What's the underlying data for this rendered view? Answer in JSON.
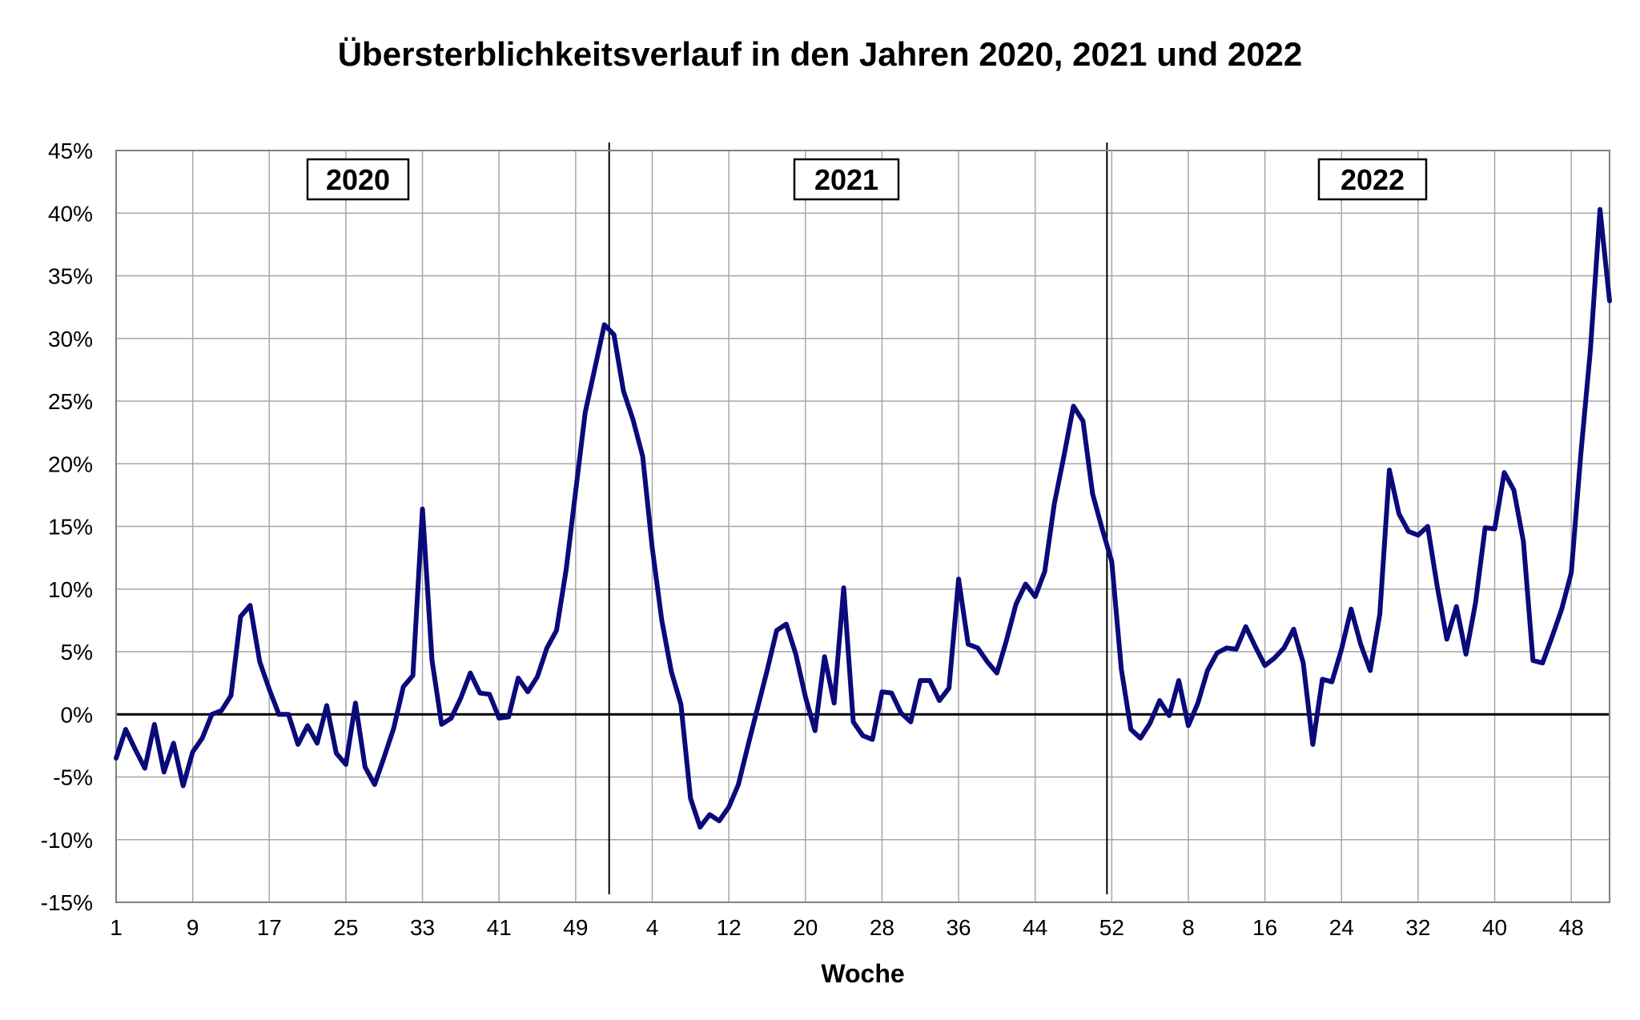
{
  "chart_data": {
    "type": "line",
    "title": "Übersterblichkeitsverlauf in den Jahren 2020, 2021 und 2022",
    "xlabel": "Woche",
    "ylabel": "",
    "ylim": [
      -15,
      45
    ],
    "y_ticks": [
      45,
      40,
      35,
      30,
      25,
      20,
      15,
      10,
      5,
      0,
      -5,
      -10,
      -15
    ],
    "y_tick_labels": [
      "45%",
      "40%",
      "35%",
      "30%",
      "25%",
      "20%",
      "15%",
      "10%",
      "5%",
      "0%",
      "-5%",
      "-10%",
      "-15%"
    ],
    "x_tick_labels": [
      "1",
      "9",
      "17",
      "25",
      "33",
      "41",
      "49",
      "4",
      "12",
      "20",
      "28",
      "36",
      "44",
      "52",
      "8",
      "16",
      "24",
      "32",
      "40",
      "48"
    ],
    "grid": true,
    "years": [
      "2020",
      "2021",
      "2022"
    ],
    "line_color": "#0a0a7a",
    "series": [
      {
        "values": [
          -3.5,
          -1.2,
          -2.8,
          -4.3,
          -0.8,
          -4.6,
          -2.3,
          -5.7,
          -3.0,
          -1.9,
          0.0,
          0.3,
          1.5,
          7.8,
          8.7,
          4.2,
          2.0,
          0.0,
          0.0,
          -2.4,
          -0.9,
          -2.3,
          0.7,
          -3.1,
          -4.0,
          0.9,
          -4.2,
          -5.6,
          -3.4,
          -1.1,
          2.2,
          3.1,
          16.4,
          4.3,
          -0.8,
          -0.3,
          1.3,
          3.3,
          1.7,
          1.6,
          -0.3,
          -0.2,
          2.9,
          1.8,
          3.0,
          5.3,
          6.7,
          11.5,
          17.8,
          24.1,
          27.6,
          31.1,
          30.3,
          25.8,
          23.5,
          20.6,
          13.3,
          7.5,
          3.4,
          0.8,
          -6.7,
          -9.0,
          -8.0,
          -8.5,
          -7.4,
          -5.6,
          -2.5,
          0.5,
          3.5,
          6.7,
          7.2,
          4.8,
          1.4,
          -1.3,
          4.6,
          0.9,
          10.1,
          -0.6,
          -1.7,
          -2.0,
          1.8,
          1.7,
          0.1,
          -0.6,
          2.7,
          2.7,
          1.1,
          2.1,
          10.8,
          5.6,
          5.3,
          4.2,
          3.3,
          5.9,
          8.8,
          10.4,
          9.4,
          11.4,
          16.8,
          20.6,
          24.6,
          23.4,
          17.6,
          14.8,
          12.2,
          3.6,
          -1.2,
          -1.9,
          -0.7,
          1.1,
          -0.1,
          2.7,
          -0.9,
          0.9,
          3.5,
          4.9,
          5.3,
          5.2,
          7.0,
          5.4,
          3.9,
          4.5,
          5.3,
          6.8,
          4.1,
          -2.4,
          2.8,
          2.6,
          5.2,
          8.4,
          5.6,
          3.5,
          8.0,
          19.5,
          16.0,
          14.6,
          14.3,
          15.0,
          10.2,
          6.0,
          8.6,
          4.8,
          8.9,
          14.9,
          14.8,
          19.3,
          17.9,
          13.8,
          4.3,
          4.1,
          6.2,
          8.4,
          11.3,
          20.8,
          29.1,
          40.3,
          33.0
        ]
      }
    ]
  }
}
